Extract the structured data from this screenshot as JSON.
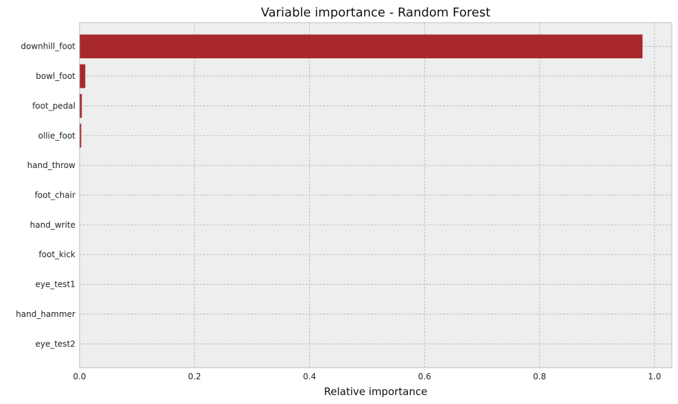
{
  "chart_data": {
    "type": "bar",
    "orientation": "horizontal",
    "title": "Variable importance - Random Forest",
    "xlabel": "Relative importance",
    "ylabel": "",
    "categories": [
      "downhill_foot",
      "bowl_foot",
      "foot_pedal",
      "ollie_foot",
      "hand_throw",
      "foot_chair",
      "hand_write",
      "foot_kick",
      "eye_test1",
      "hand_hammer",
      "eye_test2"
    ],
    "values": [
      0.979,
      0.01,
      0.004,
      0.003,
      0.0004,
      0.0004,
      0.0003,
      0.0003,
      0.0002,
      0.0002,
      0.0001
    ],
    "xlim": [
      0,
      1.03
    ],
    "xticks": [
      0,
      0.2,
      0.4,
      0.6,
      0.8,
      1.0
    ],
    "xtick_labels": [
      "0.0",
      "0.2",
      "0.4",
      "0.6",
      "0.8",
      "1.0"
    ],
    "grid": true,
    "bar_color": "#a8282c",
    "background_color": "#eeeeee",
    "grid_color": "#b0b0b0"
  }
}
